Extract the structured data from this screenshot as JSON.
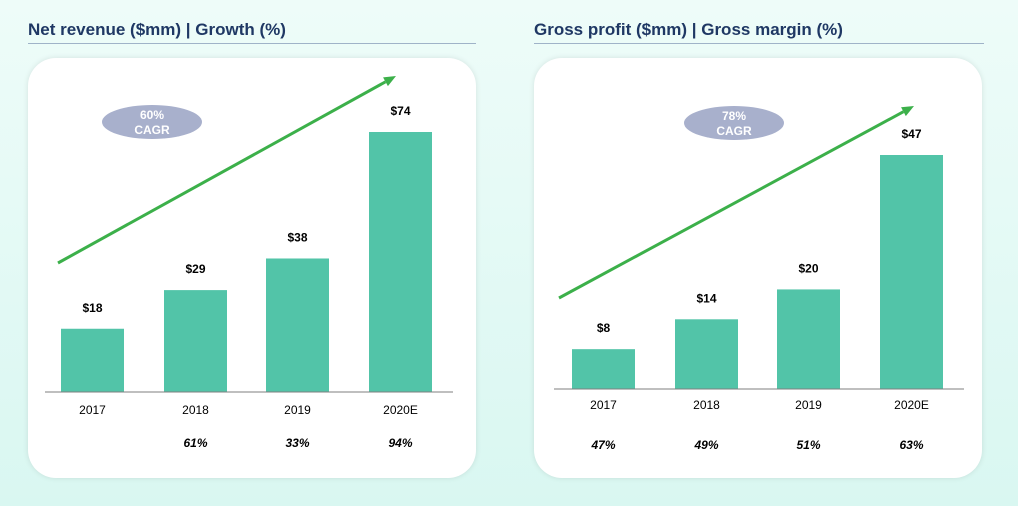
{
  "chart_data": [
    {
      "type": "bar",
      "title": "Net revenue ($mm) | Growth (%)",
      "categories": [
        "2017",
        "2018",
        "2019",
        "2020E"
      ],
      "values": [
        18,
        29,
        38,
        74
      ],
      "value_labels": [
        "$18",
        "$29",
        "$38",
        "$74"
      ],
      "growth_labels": [
        "",
        "61%",
        "33%",
        "94%"
      ],
      "cagr": [
        "60%",
        "CAGR"
      ],
      "bar_color": "#52c4a8",
      "arrow_color": "#3cb04a",
      "badge_color": "#a8b0cc",
      "ylim": [
        0,
        80
      ]
    },
    {
      "type": "bar",
      "title": "Gross profit ($mm) | Gross margin (%)",
      "categories": [
        "2017",
        "2018",
        "2019",
        "2020E"
      ],
      "values": [
        8,
        14,
        20,
        47
      ],
      "value_labels": [
        "$8",
        "$14",
        "$20",
        "$47"
      ],
      "growth_labels": [
        "47%",
        "49%",
        "51%",
        "63%"
      ],
      "cagr": [
        "78%",
        "CAGR"
      ],
      "bar_color": "#52c4a8",
      "arrow_color": "#3cb04a",
      "badge_color": "#a8b0cc",
      "ylim": [
        0,
        51
      ]
    }
  ]
}
